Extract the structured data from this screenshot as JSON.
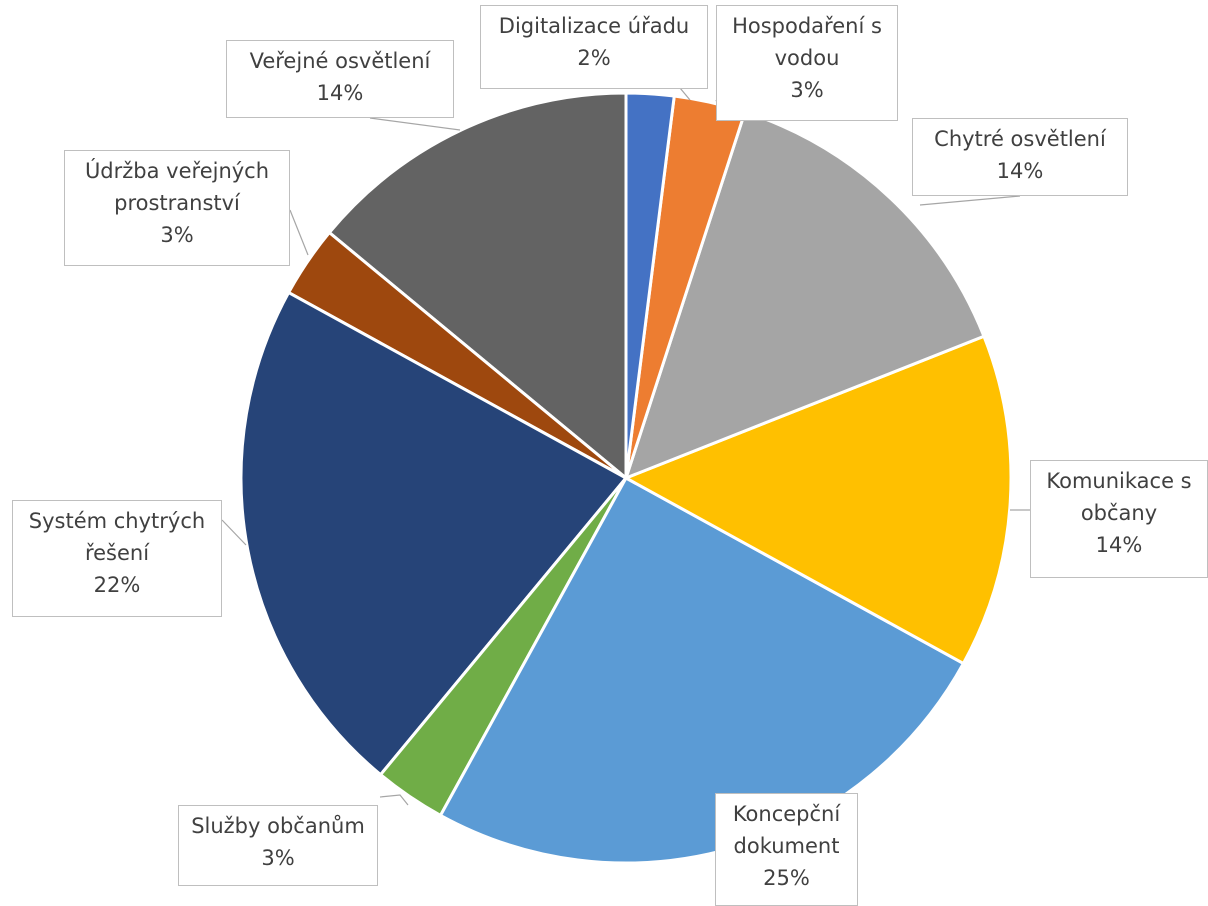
{
  "chart_data": {
    "type": "pie",
    "categories": [
      "Digitalizace úřadu",
      "Hospodaření s vodou",
      "Chytré osvětlení",
      "Komunikace s občany",
      "Koncepční dokument",
      "Služby občanům",
      "Systém chytrých řešení",
      "Údržba veřejných prostranství",
      "Veřejné osvětlení"
    ],
    "values": [
      2,
      3,
      14,
      14,
      25,
      3,
      22,
      3,
      14
    ],
    "value_labels": [
      "2%",
      "3%",
      "14%",
      "14%",
      "25%",
      "3%",
      "22%",
      "3%",
      "14%"
    ],
    "colors": [
      "#4472c4",
      "#ed7d31",
      "#a5a5a5",
      "#ffc000",
      "#5b9bd5",
      "#70ad47",
      "#264478",
      "#9e480e",
      "#636363"
    ]
  }
}
